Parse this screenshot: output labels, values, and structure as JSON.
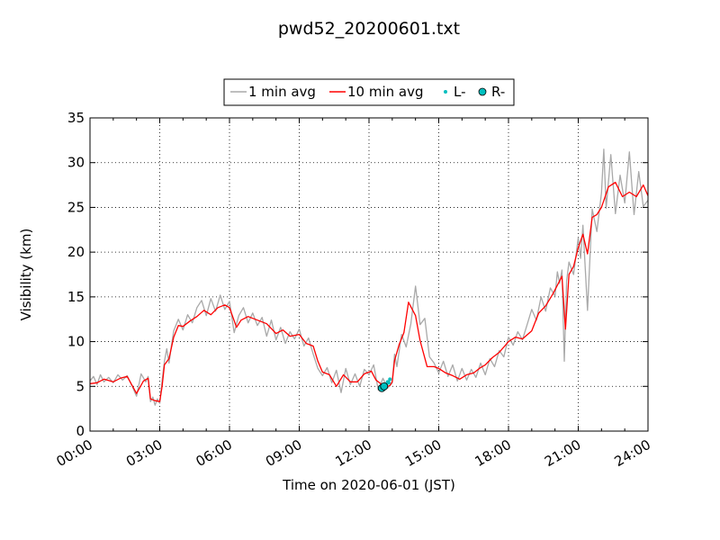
{
  "chart_data": {
    "type": "line",
    "title": "pwd52_20200601.txt",
    "xlabel": "Time on 2020-06-01 (JST)",
    "ylabel": "Visibility (km)",
    "xlim": [
      0,
      24
    ],
    "ylim": [
      0,
      35
    ],
    "x_ticks": [
      0,
      3,
      6,
      9,
      12,
      15,
      18,
      21,
      24
    ],
    "x_tick_labels": [
      "00:00",
      "03:00",
      "06:00",
      "09:00",
      "12:00",
      "15:00",
      "18:00",
      "21:00",
      "24:00"
    ],
    "y_ticks": [
      0,
      5,
      10,
      15,
      20,
      25,
      30,
      35
    ],
    "y_tick_labels": [
      "0",
      "5",
      "10",
      "15",
      "20",
      "25",
      "30",
      "35"
    ],
    "grid": true,
    "legend_placement": "top-center, above plot",
    "legend": [
      {
        "label": "1 min avg",
        "color": "#a9a9a9",
        "kind": "line"
      },
      {
        "label": "10 min avg",
        "color": "#ff0000",
        "kind": "line"
      },
      {
        "label": "L-",
        "color": "#00bfbf",
        "kind": "small-marker"
      },
      {
        "label": "R-",
        "color": "#00bfbf",
        "kind": "circle-marker"
      }
    ],
    "series": [
      {
        "name": "10 min avg",
        "color": "#ff0000",
        "x": [
          0,
          0.3,
          0.6,
          1.0,
          1.3,
          1.6,
          2.0,
          2.3,
          2.5,
          2.6,
          2.8,
          3.0,
          3.1,
          3.2,
          3.4,
          3.6,
          3.8,
          4.0,
          4.3,
          4.6,
          4.9,
          5.2,
          5.5,
          5.8,
          6.0,
          6.3,
          6.5,
          6.8,
          7.0,
          7.3,
          7.6,
          8.0,
          8.3,
          8.6,
          9.0,
          9.3,
          9.6,
          9.8,
          10.0,
          10.3,
          10.6,
          10.9,
          11.2,
          11.5,
          11.8,
          12.1,
          12.3,
          12.5,
          12.7,
          12.9,
          13.0,
          13.1,
          13.3,
          13.5,
          13.7,
          14.0,
          14.2,
          14.5,
          14.8,
          15.0,
          15.3,
          15.6,
          15.9,
          16.2,
          16.5,
          16.8,
          17.0,
          17.3,
          17.6,
          18.0,
          18.3,
          18.6,
          19.0,
          19.3,
          19.6,
          19.9,
          20.1,
          20.3,
          20.45,
          20.6,
          20.8,
          21.0,
          21.2,
          21.4,
          21.6,
          21.8,
          22.0,
          22.3,
          22.6,
          22.9,
          23.2,
          23.5,
          23.8,
          24.0
        ],
        "values": [
          5.3,
          5.4,
          5.8,
          5.5,
          5.9,
          6.1,
          4.2,
          5.6,
          5.9,
          3.6,
          3.4,
          3.3,
          5.0,
          7.4,
          8.1,
          10.5,
          11.8,
          11.7,
          12.3,
          12.8,
          13.5,
          13.0,
          13.8,
          14.1,
          13.8,
          11.6,
          12.4,
          12.8,
          12.6,
          12.3,
          12.0,
          10.9,
          11.3,
          10.6,
          10.8,
          9.8,
          9.5,
          7.8,
          6.6,
          6.3,
          5.0,
          6.3,
          5.5,
          5.5,
          6.4,
          6.7,
          5.7,
          5.3,
          4.9,
          5.1,
          5.5,
          7.9,
          9.7,
          11.0,
          14.4,
          12.9,
          10.1,
          7.2,
          7.2,
          7.0,
          6.5,
          6.2,
          5.8,
          6.3,
          6.5,
          7.1,
          7.4,
          8.2,
          8.8,
          10.0,
          10.5,
          10.3,
          11.2,
          13.2,
          14.0,
          15.3,
          16.3,
          17.3,
          11.4,
          17.5,
          18.4,
          20.5,
          22.0,
          19.8,
          23.9,
          24.2,
          25.0,
          27.3,
          27.8,
          26.2,
          26.7,
          26.2,
          27.5,
          26.3
        ]
      },
      {
        "name": "1 min avg",
        "color": "#a9a9a9",
        "x": [
          0,
          0.15,
          0.3,
          0.45,
          0.6,
          0.8,
          1.0,
          1.2,
          1.4,
          1.6,
          1.8,
          2.0,
          2.2,
          2.4,
          2.5,
          2.6,
          2.7,
          2.8,
          2.9,
          3.0,
          3.1,
          3.2,
          3.3,
          3.4,
          3.5,
          3.6,
          3.8,
          4.0,
          4.2,
          4.4,
          4.6,
          4.8,
          5.0,
          5.2,
          5.4,
          5.6,
          5.8,
          6.0,
          6.2,
          6.4,
          6.6,
          6.8,
          7.0,
          7.2,
          7.4,
          7.6,
          7.8,
          8.0,
          8.2,
          8.4,
          8.6,
          8.8,
          9.0,
          9.2,
          9.4,
          9.6,
          9.8,
          10.0,
          10.2,
          10.4,
          10.6,
          10.8,
          11.0,
          11.2,
          11.4,
          11.6,
          11.8,
          12.0,
          12.2,
          12.4,
          12.6,
          12.8,
          13.0,
          13.1,
          13.2,
          13.4,
          13.6,
          13.8,
          14.0,
          14.2,
          14.4,
          14.6,
          14.8,
          15.0,
          15.2,
          15.4,
          15.6,
          15.8,
          16.0,
          16.2,
          16.4,
          16.6,
          16.8,
          17.0,
          17.2,
          17.4,
          17.6,
          17.8,
          18.0,
          18.2,
          18.4,
          18.6,
          18.8,
          19.0,
          19.2,
          19.4,
          19.6,
          19.8,
          20.0,
          20.1,
          20.2,
          20.3,
          20.4,
          20.5,
          20.6,
          20.8,
          21.0,
          21.1,
          21.2,
          21.4,
          21.6,
          21.8,
          22.0,
          22.1,
          22.2,
          22.4,
          22.6,
          22.8,
          23.0,
          23.2,
          23.4,
          23.6,
          23.8,
          24.0
        ],
        "values": [
          5.6,
          6.1,
          5.2,
          6.3,
          5.5,
          6.0,
          5.4,
          6.3,
          5.7,
          6.2,
          5.1,
          3.9,
          6.4,
          5.5,
          6.1,
          3.3,
          3.8,
          2.9,
          3.6,
          3.1,
          5.6,
          7.8,
          9.2,
          7.6,
          9.5,
          11.2,
          12.5,
          11.3,
          13.0,
          12.1,
          13.8,
          14.6,
          12.9,
          14.8,
          13.4,
          15.2,
          13.6,
          14.5,
          11.0,
          12.9,
          13.8,
          12.1,
          13.2,
          11.8,
          12.7,
          10.6,
          12.4,
          10.2,
          11.6,
          9.8,
          11.1,
          10.3,
          11.4,
          9.5,
          10.4,
          8.6,
          7.0,
          6.2,
          7.1,
          5.4,
          6.8,
          4.3,
          7.0,
          5.2,
          6.4,
          5.0,
          6.9,
          6.3,
          7.4,
          4.6,
          5.9,
          4.8,
          5.4,
          8.6,
          7.2,
          10.8,
          9.4,
          12.0,
          16.2,
          11.9,
          12.6,
          8.3,
          7.6,
          6.5,
          7.8,
          6.1,
          7.4,
          5.6,
          7.0,
          5.7,
          6.9,
          6.0,
          7.6,
          6.3,
          8.1,
          7.2,
          9.0,
          8.3,
          10.5,
          9.6,
          11.1,
          10.2,
          11.9,
          13.6,
          12.4,
          15.0,
          13.4,
          16.0,
          15.1,
          17.8,
          16.5,
          18.0,
          7.8,
          16.8,
          18.9,
          17.5,
          21.6,
          19.3,
          23.0,
          13.5,
          24.8,
          22.3,
          26.6,
          31.5,
          24.9,
          30.9,
          24.3,
          28.6,
          25.5,
          31.2,
          24.2,
          29.0,
          25.1,
          25.8
        ]
      },
      {
        "name": "L-",
        "color": "#00bfbf",
        "x": [
          12.55,
          12.6,
          12.65,
          12.7,
          12.75,
          12.8,
          12.85,
          12.9
        ],
        "values": [
          4.6,
          4.9,
          4.7,
          5.0,
          5.2,
          5.5,
          5.4,
          5.8
        ]
      },
      {
        "name": "R-",
        "color": "#00bfbf",
        "x": [
          12.55,
          12.65
        ],
        "values": [
          4.8,
          5.0
        ]
      }
    ]
  }
}
